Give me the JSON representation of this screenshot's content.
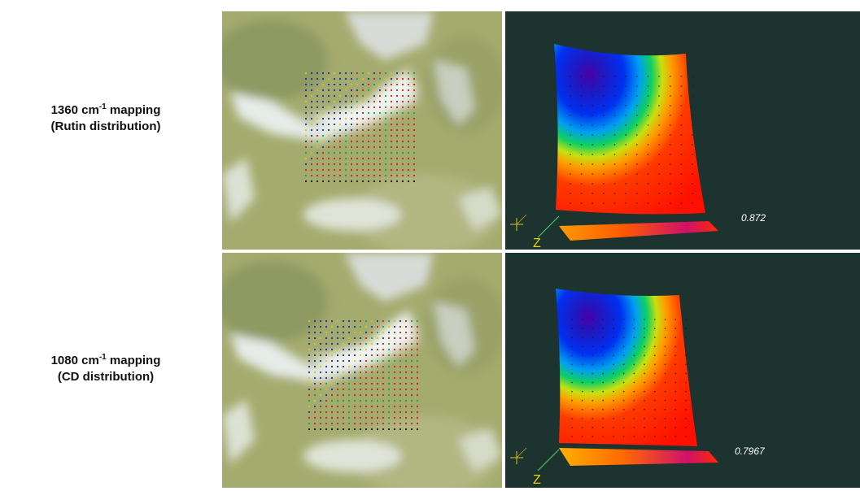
{
  "rows": [
    {
      "label_pre": "1360 cm",
      "label_sup": "-1",
      "label_post": " mapping",
      "sublabel": "(Rutin distribution)",
      "value": "0.872",
      "axis_label": "Z"
    },
    {
      "label_pre": "1080 cm",
      "label_sup": "-1",
      "label_post": " mapping",
      "sublabel": "(CD distribution)",
      "value": "0.7967",
      "axis_label": "Z"
    }
  ],
  "colors": {
    "plot_background": "#1d3330",
    "micrograph_base": "#a4ab6e",
    "grid_dot_palette": [
      "#1a1a1a",
      "#2030a0",
      "#d02020",
      "#20a040",
      "#e0c020"
    ]
  }
}
